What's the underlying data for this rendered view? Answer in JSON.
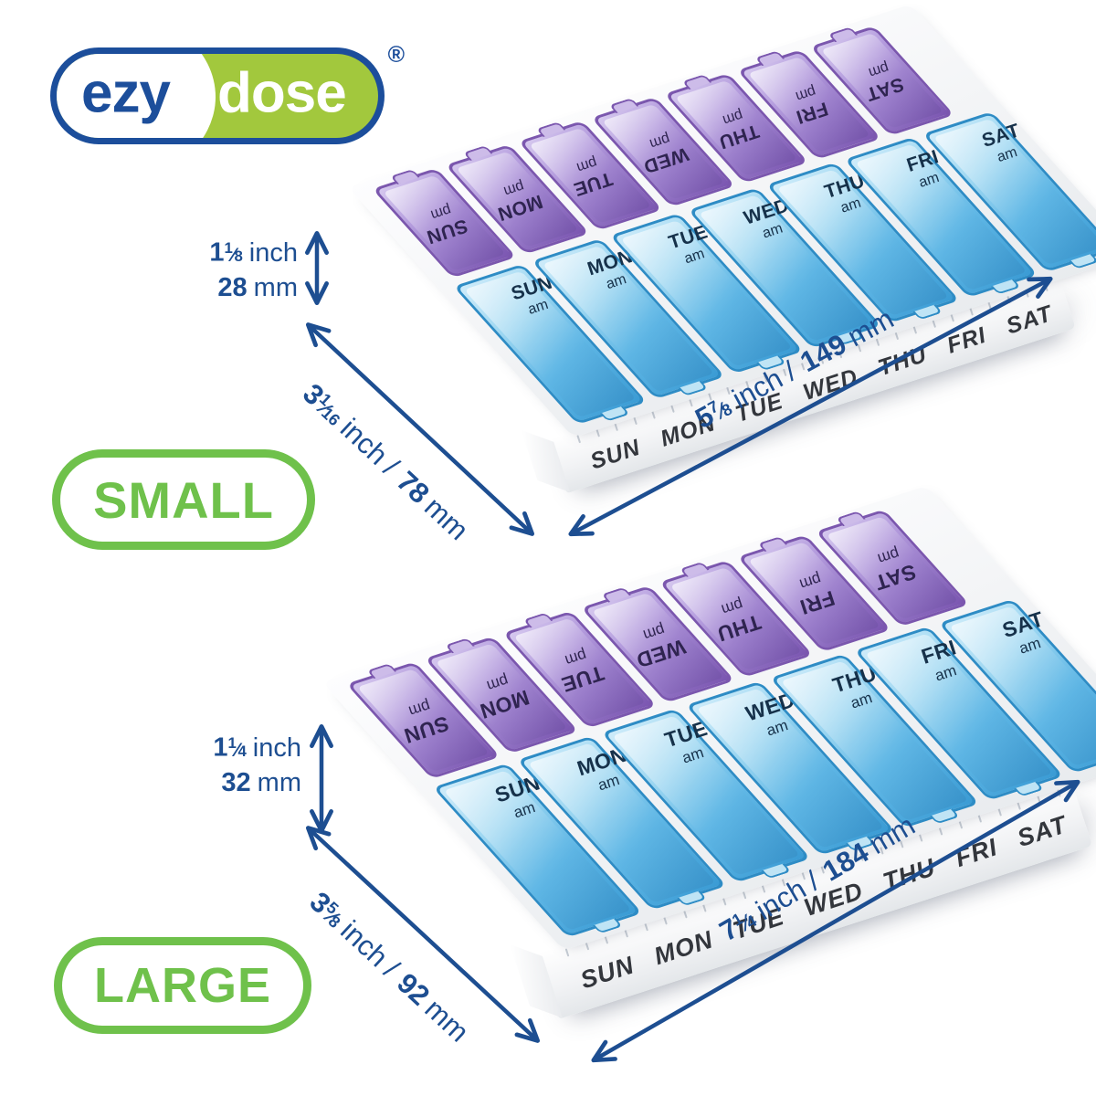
{
  "logo": {
    "ezy": "ezy",
    "dose": "dose",
    "registered": "®"
  },
  "days": [
    "SUN",
    "MON",
    "TUE",
    "WED",
    "THU",
    "FRI",
    "SAT"
  ],
  "rows": {
    "am_label": "am",
    "pm_label": "pm"
  },
  "symbols": {
    "fraction_slash": "⁄",
    "separator": "/"
  },
  "colors": {
    "dimension_blue": "#1d4e91",
    "logo_blue": "#1c4e9b",
    "logo_green": "#a2c83d",
    "badge_green": "#6fc14b",
    "lid_blue": "#4fa9da",
    "lid_purple": "#9678c6"
  },
  "variants": [
    {
      "id": "small",
      "badge": "SMALL",
      "height": {
        "inch_whole": "1",
        "inch_num": "1",
        "inch_den": "8",
        "inch_unit": "inch",
        "mm_value": "28",
        "mm_unit": "mm"
      },
      "depth": {
        "inch_whole": "3",
        "inch_num": "1",
        "inch_den": "16",
        "inch_unit": "inch",
        "mm_value": "78",
        "mm_unit": "mm"
      },
      "width": {
        "inch_whole": "5",
        "inch_num": "7",
        "inch_den": "8",
        "inch_unit": "inch",
        "mm_value": "149",
        "mm_unit": "mm"
      }
    },
    {
      "id": "large",
      "badge": "LARGE",
      "height": {
        "inch_whole": "1",
        "inch_num": "1",
        "inch_den": "4",
        "inch_unit": "inch",
        "mm_value": "32",
        "mm_unit": "mm"
      },
      "depth": {
        "inch_whole": "3",
        "inch_num": "5",
        "inch_den": "8",
        "inch_unit": "inch",
        "mm_value": "92",
        "mm_unit": "mm"
      },
      "width": {
        "inch_whole": "7",
        "inch_num": "1",
        "inch_den": "4",
        "inch_unit": "inch",
        "mm_value": "184",
        "mm_unit": "mm"
      }
    }
  ]
}
